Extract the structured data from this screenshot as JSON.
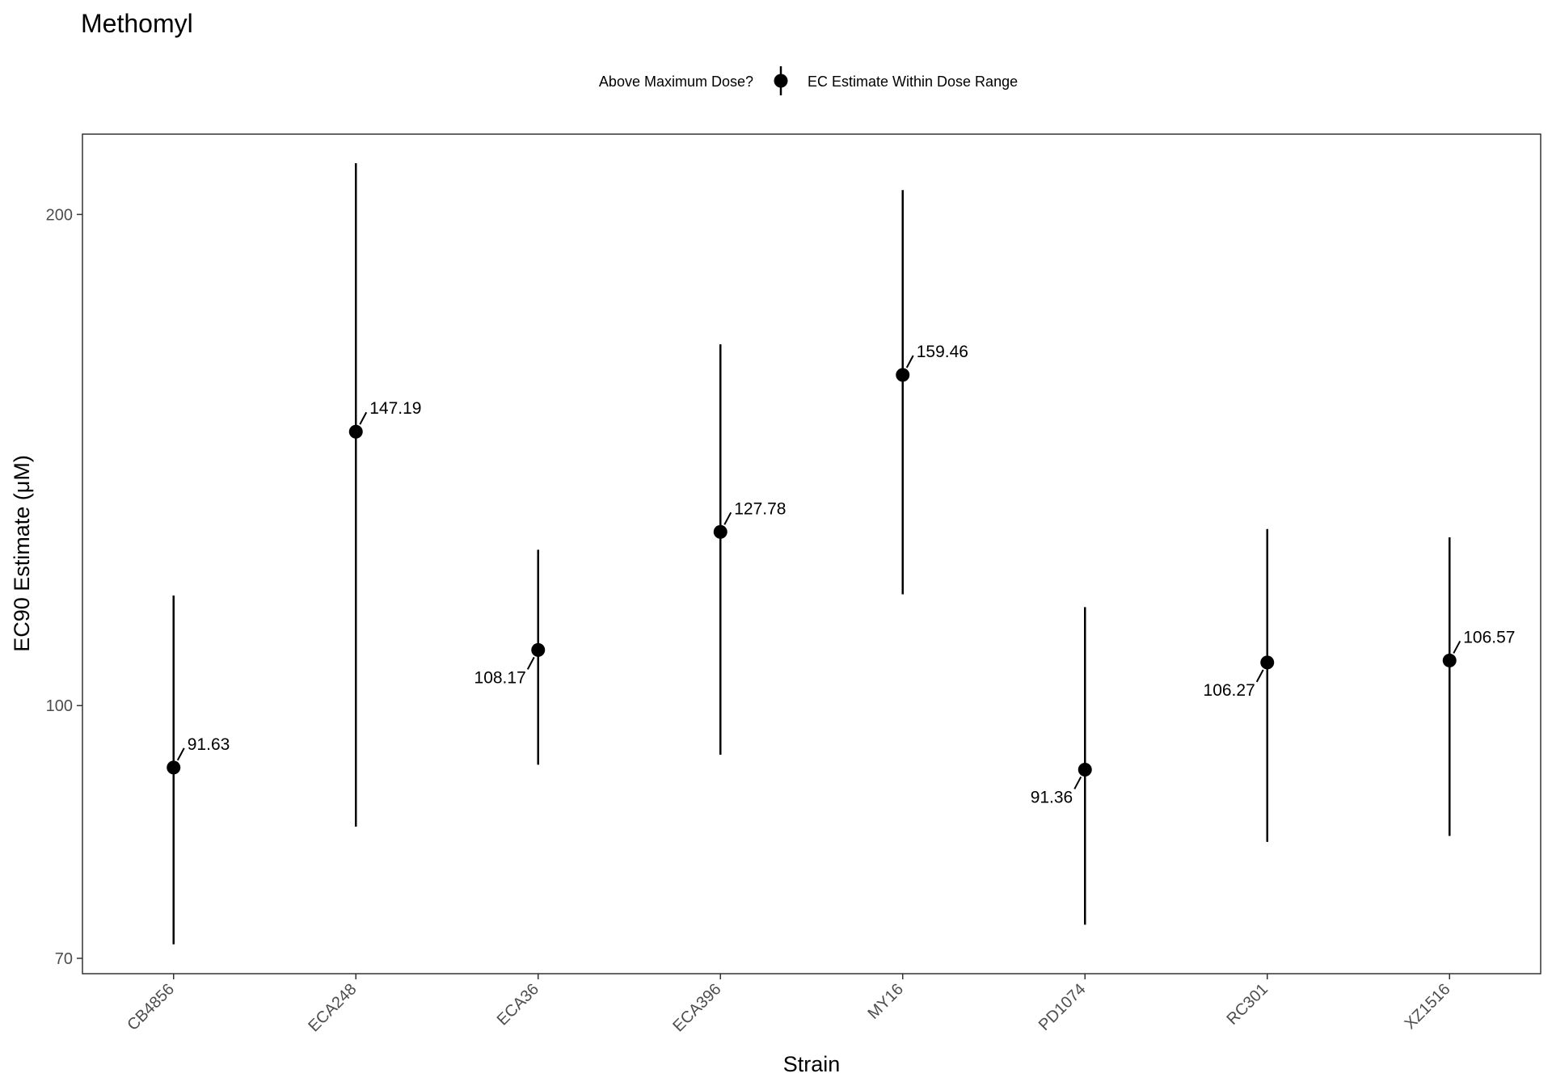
{
  "chart_data": {
    "type": "scatter",
    "title": "Methomyl",
    "xlabel": "Strain",
    "ylabel": "EC90 Estimate (μM)",
    "y_scale": "log",
    "ylim": [
      68.5,
      224
    ],
    "yticks": [
      70,
      100,
      200
    ],
    "grid": false,
    "legend": {
      "position": "top",
      "title": "Above Maximum Dose?",
      "entries": [
        "EC Estimate Within Dose Range"
      ]
    },
    "categories": [
      "CB4856",
      "ECA248",
      "ECA36",
      "ECA396",
      "MY16",
      "PD1074",
      "RC301",
      "XZ1516"
    ],
    "series": [
      {
        "name": "EC Estimate Within Dose Range",
        "values": [
          91.63,
          147.19,
          108.17,
          127.78,
          159.46,
          91.36,
          106.27,
          106.57
        ],
        "lower": [
          71.4,
          84.3,
          92.0,
          93.3,
          117.0,
          73.4,
          82.5,
          83.2
        ],
        "upper": [
          116.8,
          215.0,
          124.6,
          166.5,
          207.0,
          114.9,
          128.3,
          126.8
        ],
        "labels": [
          "91.63",
          "147.19",
          "108.17",
          "127.78",
          "159.46",
          "91.36",
          "106.27",
          "106.57"
        ],
        "label_side": [
          "right",
          "right",
          "left",
          "right",
          "right",
          "left",
          "left",
          "right"
        ]
      }
    ]
  }
}
